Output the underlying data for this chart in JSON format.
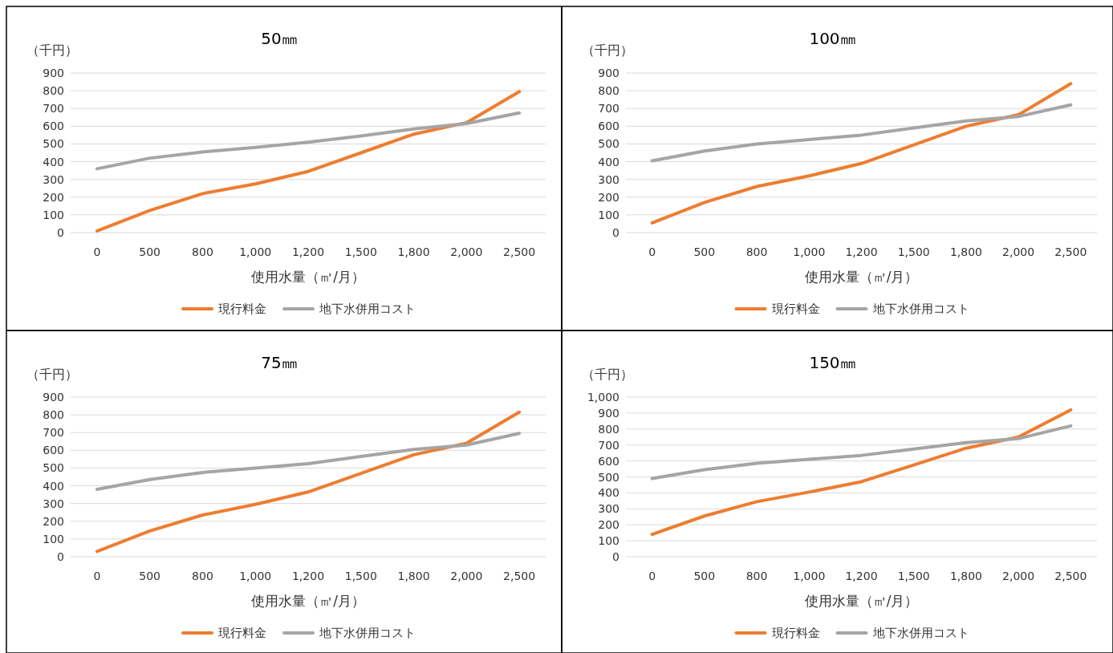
{
  "chart_data": [
    {
      "type": "line",
      "title": "50㎜",
      "ylabel": "（千円）",
      "xlabel": "使用水量（㎥/月）",
      "categories": [
        "0",
        "500",
        "800",
        "1,000",
        "1,200",
        "1,500",
        "1,800",
        "2,000",
        "2,500"
      ],
      "ylim": [
        0,
        900
      ],
      "yticks": [
        0,
        100,
        200,
        300,
        400,
        500,
        600,
        700,
        800,
        900
      ],
      "grid": "y",
      "legend": "bottom",
      "series": [
        {
          "name": "現行料金",
          "color": "#ed7d31",
          "values": [
            10,
            125,
            220,
            275,
            345,
            450,
            555,
            620,
            795
          ]
        },
        {
          "name": "地下水併用コスト",
          "color": "#a5a5a5",
          "values": [
            360,
            420,
            455,
            480,
            510,
            545,
            585,
            615,
            675
          ]
        }
      ]
    },
    {
      "type": "line",
      "title": "100㎜",
      "ylabel": "（千円）",
      "xlabel": "使用水量（㎥/月）",
      "categories": [
        "0",
        "500",
        "800",
        "1,000",
        "1,200",
        "1,500",
        "1,800",
        "2,000",
        "2,500"
      ],
      "ylim": [
        0,
        900
      ],
      "yticks": [
        0,
        100,
        200,
        300,
        400,
        500,
        600,
        700,
        800,
        900
      ],
      "grid": "y",
      "legend": "bottom",
      "series": [
        {
          "name": "現行料金",
          "color": "#ed7d31",
          "values": [
            55,
            170,
            260,
            320,
            390,
            495,
            600,
            665,
            840
          ]
        },
        {
          "name": "地下水併用コスト",
          "color": "#a5a5a5",
          "values": [
            405,
            460,
            500,
            525,
            550,
            590,
            630,
            655,
            720
          ]
        }
      ]
    },
    {
      "type": "line",
      "title": "75㎜",
      "ylabel": "（千円）",
      "xlabel": "使用水量（㎥/月）",
      "categories": [
        "0",
        "500",
        "800",
        "1,000",
        "1,200",
        "1,500",
        "1,800",
        "2,000",
        "2,500"
      ],
      "ylim": [
        0,
        900
      ],
      "yticks": [
        0,
        100,
        200,
        300,
        400,
        500,
        600,
        700,
        800,
        900
      ],
      "grid": "y",
      "legend": "bottom",
      "series": [
        {
          "name": "現行料金",
          "color": "#ed7d31",
          "values": [
            30,
            145,
            235,
            295,
            365,
            470,
            575,
            640,
            815
          ]
        },
        {
          "name": "地下水併用コスト",
          "color": "#a5a5a5",
          "values": [
            380,
            435,
            475,
            500,
            525,
            565,
            605,
            630,
            695
          ]
        }
      ]
    },
    {
      "type": "line",
      "title": "150㎜",
      "ylabel": "（千円）",
      "xlabel": "使用水量（㎥/月）",
      "categories": [
        "0",
        "500",
        "800",
        "1,000",
        "1,200",
        "1,500",
        "1,800",
        "2,000",
        "2,500"
      ],
      "ylim": [
        0,
        1000
      ],
      "yticks": [
        0,
        100,
        200,
        300,
        400,
        500,
        600,
        700,
        800,
        900,
        {
          "value": 1000,
          "label": "1,000"
        }
      ],
      "grid": "y",
      "legend": "bottom",
      "series": [
        {
          "name": "現行料金",
          "color": "#ed7d31",
          "values": [
            140,
            255,
            345,
            405,
            470,
            575,
            680,
            750,
            920
          ]
        },
        {
          "name": "地下水併用コスト",
          "color": "#a5a5a5",
          "values": [
            490,
            545,
            585,
            610,
            635,
            675,
            715,
            740,
            820
          ]
        }
      ]
    }
  ]
}
